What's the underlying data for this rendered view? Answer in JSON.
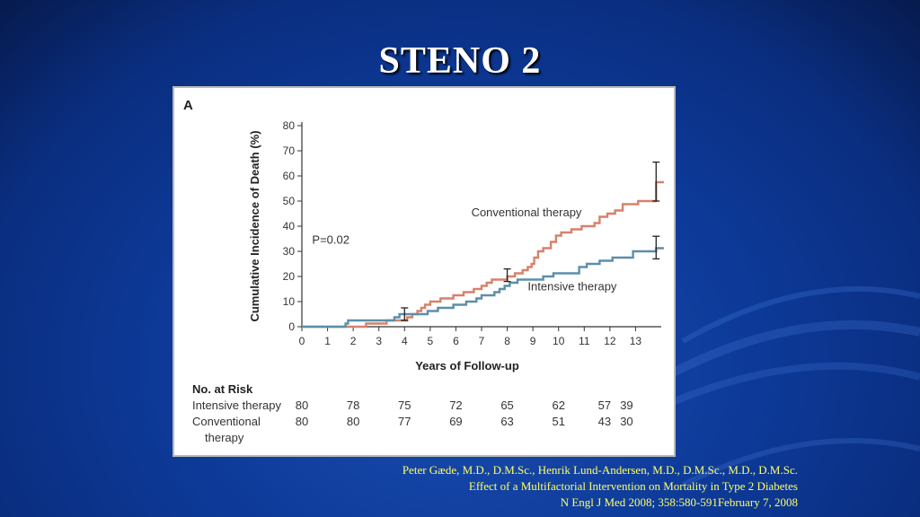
{
  "slide": {
    "title": "STENO 2"
  },
  "figure": {
    "panel_label": "A"
  },
  "chart_data": {
    "type": "line",
    "xlabel": "Years of Follow-up",
    "ylabel": "Cumulative Incidence of Death (%)",
    "xlim": [
      0,
      14
    ],
    "ylim": [
      0,
      80
    ],
    "x_ticks": [
      "0",
      "1",
      "2",
      "3",
      "4",
      "5",
      "6",
      "7",
      "8",
      "9",
      "10",
      "11",
      "12",
      "13"
    ],
    "y_ticks": [
      "0",
      "10",
      "20",
      "30",
      "40",
      "50",
      "60",
      "70",
      "80"
    ],
    "grid": false,
    "p_value": "P=0.02",
    "series": [
      {
        "name": "Conventional therapy",
        "color": "#d6816b",
        "label_x": 6.6,
        "label_y": 44,
        "points": [
          [
            0,
            0
          ],
          [
            2.5,
            0
          ],
          [
            2.5,
            1.25
          ],
          [
            3.3,
            1.25
          ],
          [
            3.3,
            2.5
          ],
          [
            4.1,
            2.5
          ],
          [
            4.1,
            3.75
          ],
          [
            4.3,
            3.75
          ],
          [
            4.3,
            5
          ],
          [
            4.5,
            5
          ],
          [
            4.5,
            6.25
          ],
          [
            4.65,
            6.25
          ],
          [
            4.65,
            7.5
          ],
          [
            4.8,
            7.5
          ],
          [
            4.8,
            8.75
          ],
          [
            5.0,
            8.75
          ],
          [
            5.0,
            10
          ],
          [
            5.4,
            10
          ],
          [
            5.4,
            11.25
          ],
          [
            5.9,
            11.25
          ],
          [
            5.9,
            12.5
          ],
          [
            6.3,
            12.5
          ],
          [
            6.3,
            13.75
          ],
          [
            6.7,
            13.75
          ],
          [
            6.7,
            15
          ],
          [
            7.0,
            15
          ],
          [
            7.0,
            16.25
          ],
          [
            7.2,
            16.25
          ],
          [
            7.2,
            17.5
          ],
          [
            7.4,
            17.5
          ],
          [
            7.4,
            18.75
          ],
          [
            8.0,
            18.75
          ],
          [
            8.0,
            20
          ],
          [
            8.3,
            20
          ],
          [
            8.3,
            21.25
          ],
          [
            8.6,
            21.25
          ],
          [
            8.6,
            22.5
          ],
          [
            8.8,
            22.5
          ],
          [
            8.8,
            23.75
          ],
          [
            8.95,
            23.75
          ],
          [
            8.95,
            25
          ],
          [
            9.05,
            25
          ],
          [
            9.05,
            27.5
          ],
          [
            9.2,
            27.5
          ],
          [
            9.2,
            30
          ],
          [
            9.4,
            30
          ],
          [
            9.4,
            31.25
          ],
          [
            9.7,
            31.25
          ],
          [
            9.7,
            33.75
          ],
          [
            9.9,
            33.75
          ],
          [
            9.9,
            36.25
          ],
          [
            10.1,
            36.25
          ],
          [
            10.1,
            37.5
          ],
          [
            10.5,
            37.5
          ],
          [
            10.5,
            38.75
          ],
          [
            10.9,
            38.75
          ],
          [
            10.9,
            40
          ],
          [
            11.4,
            40
          ],
          [
            11.4,
            41.25
          ],
          [
            11.6,
            41.25
          ],
          [
            11.6,
            43.75
          ],
          [
            11.9,
            43.75
          ],
          [
            11.9,
            45
          ],
          [
            12.2,
            45
          ],
          [
            12.2,
            46.25
          ],
          [
            12.5,
            46.25
          ],
          [
            12.5,
            48.75
          ],
          [
            13.1,
            48.75
          ],
          [
            13.1,
            50
          ],
          [
            13.8,
            50
          ],
          [
            13.8,
            57.5
          ],
          [
            14.1,
            57.5
          ]
        ]
      },
      {
        "name": "Intensive therapy",
        "color": "#5b8fa8",
        "label_x": 8.8,
        "label_y": 14.5,
        "points": [
          [
            0,
            0
          ],
          [
            1.7,
            0
          ],
          [
            1.7,
            1.25
          ],
          [
            1.8,
            1.25
          ],
          [
            1.8,
            2.5
          ],
          [
            3.6,
            2.5
          ],
          [
            3.6,
            3.75
          ],
          [
            3.8,
            3.75
          ],
          [
            3.8,
            5
          ],
          [
            4.9,
            5
          ],
          [
            4.9,
            6.25
          ],
          [
            5.3,
            6.25
          ],
          [
            5.3,
            7.5
          ],
          [
            5.9,
            7.5
          ],
          [
            5.9,
            8.75
          ],
          [
            6.4,
            8.75
          ],
          [
            6.4,
            10
          ],
          [
            6.8,
            10
          ],
          [
            6.8,
            11.25
          ],
          [
            7.0,
            11.25
          ],
          [
            7.0,
            12.5
          ],
          [
            7.5,
            12.5
          ],
          [
            7.5,
            13.75
          ],
          [
            7.7,
            13.75
          ],
          [
            7.7,
            15
          ],
          [
            7.9,
            15
          ],
          [
            7.9,
            16.25
          ],
          [
            8.1,
            16.25
          ],
          [
            8.1,
            17.5
          ],
          [
            8.4,
            17.5
          ],
          [
            8.4,
            18.75
          ],
          [
            9.4,
            18.75
          ],
          [
            9.4,
            20
          ],
          [
            9.8,
            20
          ],
          [
            9.8,
            21.25
          ],
          [
            10.8,
            21.25
          ],
          [
            10.8,
            23.75
          ],
          [
            11.1,
            23.75
          ],
          [
            11.1,
            25
          ],
          [
            11.6,
            25
          ],
          [
            11.6,
            26.25
          ],
          [
            12.1,
            26.25
          ],
          [
            12.1,
            27.5
          ],
          [
            12.9,
            27.5
          ],
          [
            12.9,
            30
          ],
          [
            13.8,
            30
          ],
          [
            13.8,
            31.25
          ],
          [
            14.1,
            31.25
          ]
        ]
      }
    ],
    "error_bars": [
      {
        "x": 4.0,
        "low": 2.5,
        "high": 7.5
      },
      {
        "x": 8.0,
        "low": 18.0,
        "high": 23.0
      },
      {
        "x": 13.8,
        "low": 27.0,
        "high": 36.0
      },
      {
        "x": 13.8,
        "low": 50.0,
        "high": 65.5
      }
    ],
    "risk_table": {
      "title": "No. at Risk",
      "times": [
        0,
        2,
        4,
        6,
        8,
        10,
        12,
        13
      ],
      "rows": [
        {
          "label": [
            "Intensive therapy"
          ],
          "values": [
            "80",
            "78",
            "75",
            "72",
            "65",
            "62",
            "57",
            "39"
          ]
        },
        {
          "label": [
            "Conventional",
            "therapy"
          ],
          "values": [
            "80",
            "80",
            "77",
            "69",
            "63",
            "51",
            "43",
            "30"
          ]
        }
      ]
    }
  },
  "citation": {
    "line1": "Peter Gæde, M.D., D.M.Sc., Henrik Lund-Andersen, M.D., D.M.Sc., M.D., D.M.Sc.",
    "line2": "Effect of a Multifactorial Intervention on Mortality in Type 2 Diabetes",
    "line3": "N Engl J Med 2008; 358:580-591February 7, 2008"
  }
}
